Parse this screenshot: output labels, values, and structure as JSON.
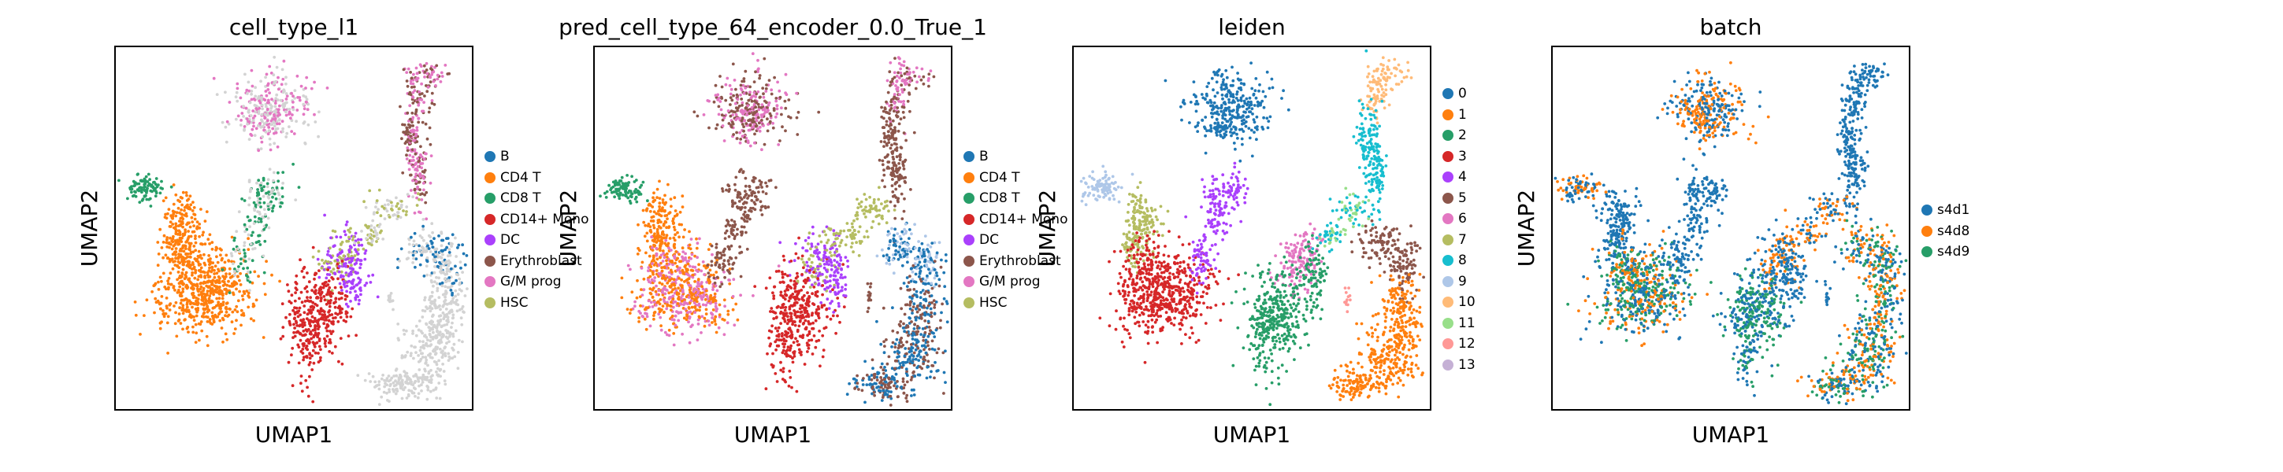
{
  "figure": {
    "x_axis_label": "UMAP1",
    "y_axis_label": "UMAP2"
  },
  "chart_data": [
    {
      "type": "scatter",
      "title": "cell_type_l1",
      "xlabel": "UMAP1",
      "ylabel": "UMAP2",
      "legend": [
        "B",
        "CD4 T",
        "CD8 T",
        "CD14+ Mono",
        "DC",
        "Erythroblast",
        "G/M prog",
        "HSC"
      ],
      "legend_colors": [
        "#1f77b4",
        "#ff7f0e",
        "#279e68",
        "#d62728",
        "#aa40fc",
        "#8c564b",
        "#e377c2",
        "#b5bd61"
      ],
      "unlabeled_color": "#d3d3d3",
      "legend_placement": "right",
      "grid": false
    },
    {
      "type": "scatter",
      "title": "pred_cell_type_64_encoder_0.0_True_1",
      "xlabel": "UMAP1",
      "ylabel": "UMAP2",
      "legend": [
        "B",
        "CD4 T",
        "CD8 T",
        "CD14+ Mono",
        "DC",
        "Erythroblast",
        "G/M prog",
        "HSC"
      ],
      "legend_colors": [
        "#1f77b4",
        "#ff7f0e",
        "#279e68",
        "#d62728",
        "#aa40fc",
        "#8c564b",
        "#e377c2",
        "#b5bd61"
      ],
      "legend_placement": "right",
      "grid": false
    },
    {
      "type": "scatter",
      "title": "leiden",
      "xlabel": "UMAP1",
      "ylabel": "UMAP2",
      "legend": [
        "0",
        "1",
        "2",
        "3",
        "4",
        "5",
        "6",
        "7",
        "8",
        "9",
        "10",
        "11",
        "12",
        "13"
      ],
      "legend_colors": [
        "#1f77b4",
        "#ff7f0e",
        "#279e68",
        "#d62728",
        "#aa40fc",
        "#8c564b",
        "#e377c2",
        "#b5bd61",
        "#17becf",
        "#aec7e8",
        "#ffbb78",
        "#98df8a",
        "#ff9896",
        "#c5b0d5"
      ],
      "legend_placement": "right",
      "grid": false
    },
    {
      "type": "scatter",
      "title": "batch",
      "xlabel": "UMAP1",
      "ylabel": "UMAP2",
      "legend": [
        "s4d1",
        "s4d8",
        "s4d9"
      ],
      "legend_colors": [
        "#1f77b4",
        "#ff7f0e",
        "#279e68"
      ],
      "legend_placement": "right",
      "grid": false
    }
  ]
}
